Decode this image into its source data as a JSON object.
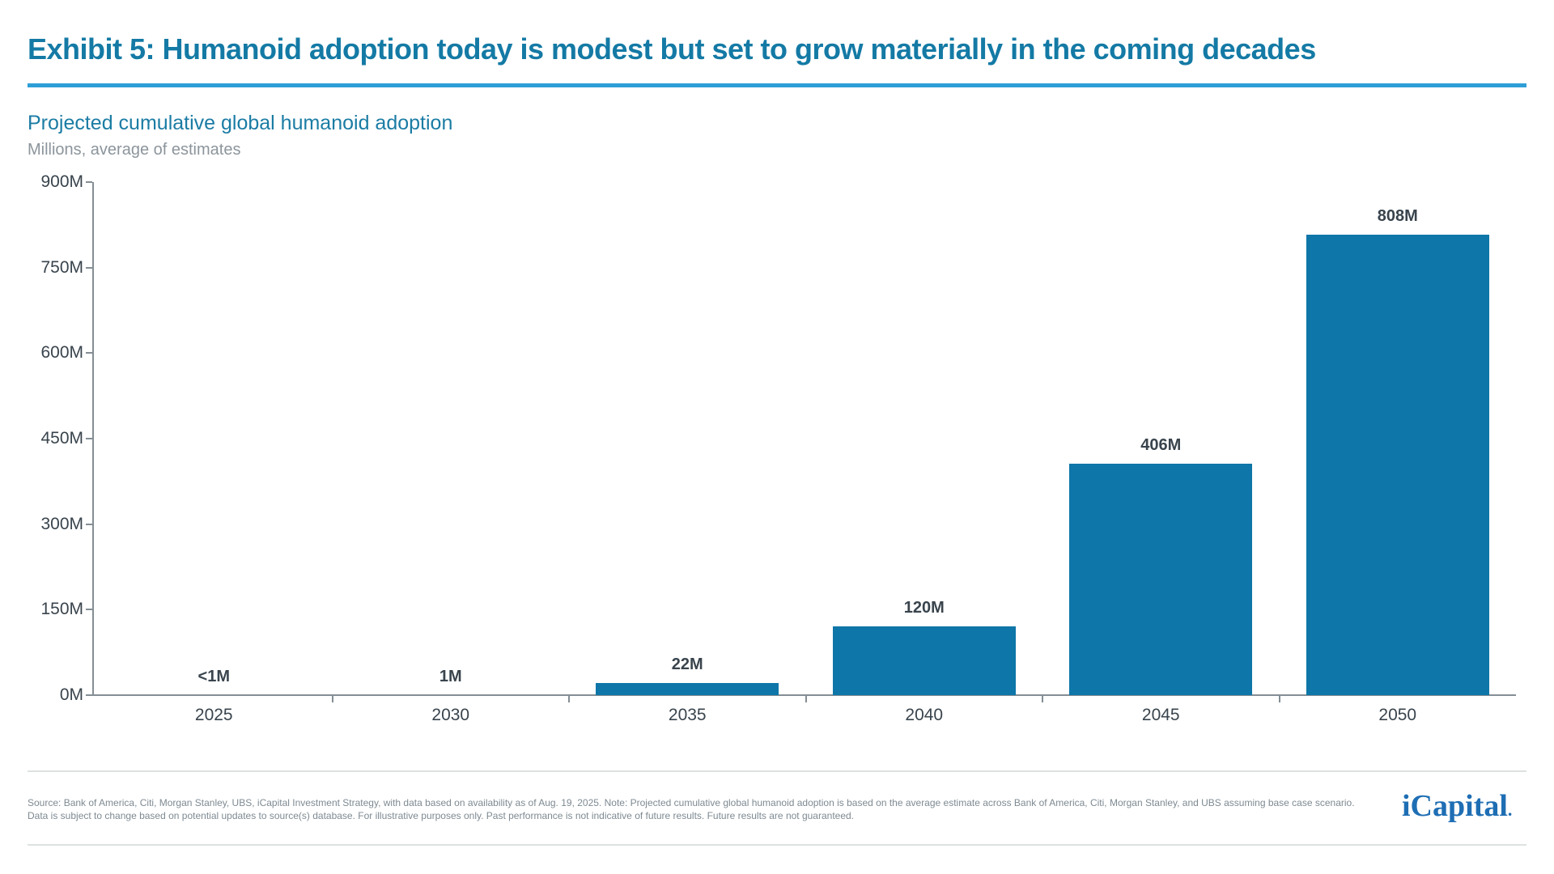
{
  "header": {
    "exhibit_title": "Exhibit 5: Humanoid adoption today is modest but set to grow materially in the coming decades",
    "chart_title": "Projected cumulative global humanoid adoption",
    "units_caption": "Millions, average of estimates"
  },
  "chart_data": {
    "type": "bar",
    "title": "Projected cumulative global humanoid adoption",
    "subtitle": "Millions, average of estimates",
    "categories": [
      "2025",
      "2030",
      "2035",
      "2040",
      "2045",
      "2050"
    ],
    "values": [
      0.5,
      1,
      22,
      120,
      406,
      808
    ],
    "value_labels": [
      "<1M",
      "1M",
      "22M",
      "120M",
      "406M",
      "808M"
    ],
    "xlabel": "",
    "ylabel": "Millions",
    "ylim": [
      0,
      900
    ],
    "ytick_interval": 150,
    "ytick_labels": [
      "0M",
      "150M",
      "300M",
      "450M",
      "600M",
      "750M",
      "900M"
    ],
    "grid": false,
    "legend": "none",
    "bar_color": "#0E76A8"
  },
  "colors": {
    "title_teal": "#147AA5",
    "rule_blue": "#2E9FD6",
    "bar_blue": "#0E76A8",
    "axis_gray": "#848E94",
    "label_dark": "#39444D",
    "caption_gray": "#8C959C",
    "source_gray": "#7E8A92",
    "logo_blue": "#1E6EB4",
    "hairline_gray": "#DDE1E1"
  },
  "footer": {
    "source_line1": "Source: Bank of America, Citi, Morgan Stanley, UBS, iCapital Investment Strategy, with data based on availability as of Aug. 19, 2025. Note: Projected cumulative global humanoid adoption is based on the average estimate across Bank of America, Citi, Morgan Stanley, and UBS assuming base case scenario.",
    "source_line2": "Data is subject to change based on potential updates to source(s) database. For illustrative purposes only. Past performance is not indicative of future results. Future results are not guaranteed.",
    "logo_text": "iCapital",
    "logo_mark": "."
  }
}
